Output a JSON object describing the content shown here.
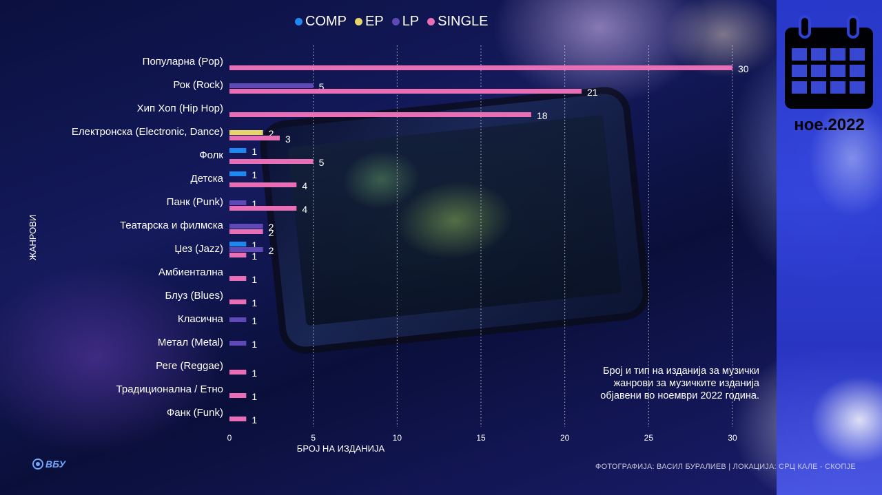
{
  "legend": [
    {
      "label": "COMP",
      "color": "#1e88f0"
    },
    {
      "label": "EP",
      "color": "#e6d56a"
    },
    {
      "label": "LP",
      "color": "#5e49b6"
    },
    {
      "label": "SINGLE",
      "color": "#e86fb5"
    }
  ],
  "chart_data": {
    "type": "bar",
    "orientation": "horizontal",
    "xlabel": "БРОЈ НА ИЗДАНИЈА",
    "ylabel": "ЖАНРОВИ",
    "xlim": [
      0,
      30
    ],
    "xticks": [
      0,
      5,
      10,
      15,
      20,
      25,
      30
    ],
    "grid": "vertical dotted",
    "legend_position": "top",
    "categories": [
      "Популарна (Pop)",
      "Рок (Rock)",
      "Хип Хоп (Hip Hop)",
      "Електронска (Electronic, Dance)",
      "Фолк",
      "Детска",
      "Панк (Punk)",
      "Театарска и филмска",
      "Џез (Jazz)",
      "Амбиентална",
      "Блуз (Blues)",
      "Класична",
      "Метал (Metal)",
      "Реге (Reggae)",
      "Традиционална / Етно",
      "Фанк (Funk)"
    ],
    "series": [
      {
        "name": "COMP",
        "color": "#1e88f0",
        "values": [
          null,
          null,
          null,
          null,
          1,
          1,
          null,
          null,
          1,
          null,
          null,
          null,
          null,
          null,
          null,
          null
        ]
      },
      {
        "name": "EP",
        "color": "#e6d56a",
        "values": [
          null,
          null,
          null,
          2,
          null,
          null,
          null,
          null,
          null,
          null,
          null,
          null,
          null,
          null,
          null,
          null
        ]
      },
      {
        "name": "LP",
        "color": "#5e49b6",
        "values": [
          null,
          5,
          null,
          null,
          null,
          null,
          1,
          2,
          2,
          null,
          null,
          1,
          1,
          null,
          null,
          null
        ]
      },
      {
        "name": "SINGLE",
        "color": "#e86fb5",
        "values": [
          30,
          21,
          18,
          3,
          5,
          4,
          4,
          2,
          1,
          1,
          1,
          null,
          null,
          1,
          1,
          1
        ]
      }
    ]
  },
  "calendar": {
    "date": "ное.2022"
  },
  "caption": {
    "line1": "Број и тип на изданија за музички",
    "line2": "жанрови за музичките изданија",
    "line3": "објавени во ноември 2022 година."
  },
  "credit": "ФОТОГРАФИЈА: ВАСИЛ БУРАЛИЕВ | ЛОКАЦИЈА: СРЦ КАЛЕ - СКОПЈЕ",
  "logo": {
    "text": "ВБУ"
  }
}
